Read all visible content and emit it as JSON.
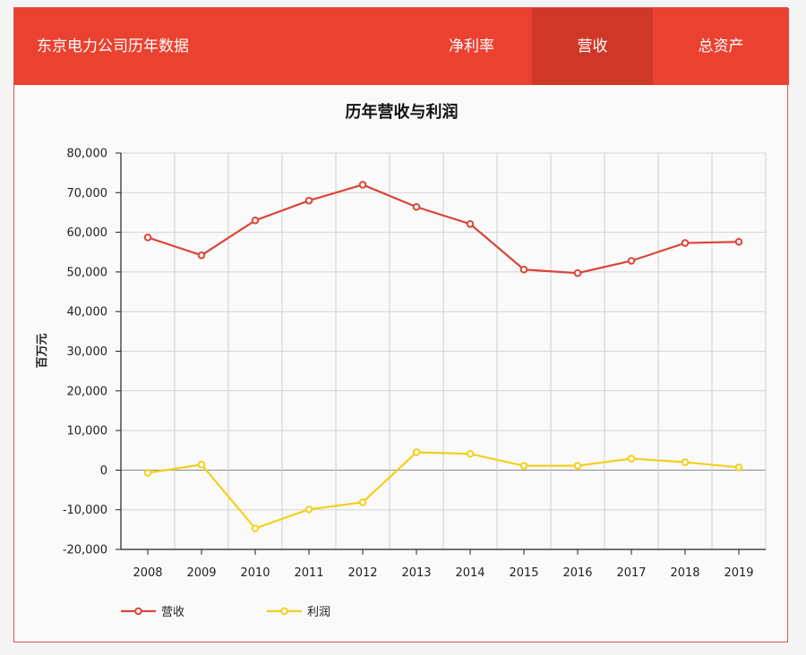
{
  "header": {
    "title": "东京电力公司历年数据",
    "tabs": [
      {
        "label": "净利率",
        "active": false
      },
      {
        "label": "营收",
        "active": true
      },
      {
        "label": "总资产",
        "active": false
      }
    ]
  },
  "colors": {
    "header_bg": "#ea4130",
    "active_tab_bg": "#cf3826",
    "revenue": "#dc4437",
    "profit": "#f4cf1a"
  },
  "chart_data": {
    "type": "line",
    "title": "历年营收与利润",
    "xlabel": "",
    "ylabel": "百万元",
    "ylim": [
      -20000,
      80000
    ],
    "yticks": [
      -20000,
      -10000,
      0,
      10000,
      20000,
      30000,
      40000,
      50000,
      60000,
      70000,
      80000
    ],
    "ytick_labels": [
      "-20,000",
      "-10,000",
      "0",
      "10,000",
      "20,000",
      "30,000",
      "40,000",
      "50,000",
      "60,000",
      "70,000",
      "80,000"
    ],
    "categories": [
      "2008",
      "2009",
      "2010",
      "2011",
      "2012",
      "2013",
      "2014",
      "2015",
      "2016",
      "2017",
      "2018",
      "2019"
    ],
    "series": [
      {
        "name": "营收",
        "color": "#dc4437",
        "values": [
          58700,
          54200,
          63000,
          68000,
          72000,
          66400,
          62100,
          50600,
          49700,
          52800,
          57300,
          57600
        ]
      },
      {
        "name": "利润",
        "color": "#f4cf1a",
        "values": [
          -700,
          1400,
          -14700,
          -9900,
          -8100,
          4500,
          4100,
          1100,
          1100,
          2900,
          2000,
          700
        ]
      }
    ],
    "grid": true,
    "legend_position": "bottom-left"
  }
}
